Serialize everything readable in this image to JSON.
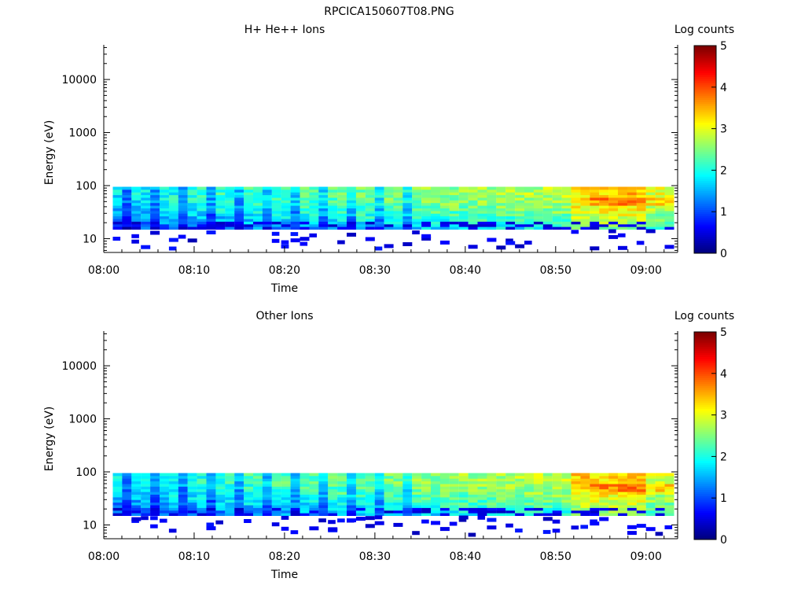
{
  "figure_title": "RPCICA150607T08.PNG",
  "colors": {
    "background": "#ffffff",
    "axis": "#000000",
    "colormap_stops": [
      "#00007f",
      "#0000ff",
      "#007fff",
      "#00ffff",
      "#7fff7f",
      "#ffff00",
      "#ff7f00",
      "#ff0000",
      "#7f0000"
    ]
  },
  "chart_data": [
    {
      "type": "heatmap",
      "title": "H+ He++ Ions",
      "xlabel": "Time",
      "ylabel": "Energy (eV)",
      "x_ticks": [
        "08:00",
        "08:10",
        "08:20",
        "08:30",
        "08:40",
        "08:50",
        "09:00"
      ],
      "x_range_minutes": [
        0,
        63.5
      ],
      "y_scale": "log",
      "y_range": [
        5.5,
        45000
      ],
      "y_ticks": [
        "10",
        "100",
        "1000",
        "10000"
      ],
      "colorbar": {
        "label": "Log counts",
        "range": [
          0,
          5
        ],
        "ticks": [
          "0",
          "1",
          "2",
          "3",
          "4",
          "5"
        ]
      },
      "energy_band_eV": [
        15,
        95
      ],
      "description_values": {
        "typical_log_counts_early": 1.8,
        "typical_log_counts_late": 3.0,
        "peak_log_counts": 3.8,
        "peak_times": [
          "08:52",
          "08:56"
        ]
      }
    },
    {
      "type": "heatmap",
      "title": "Other Ions",
      "xlabel": "Time",
      "ylabel": "Energy (eV)",
      "x_ticks": [
        "08:00",
        "08:10",
        "08:20",
        "08:30",
        "08:40",
        "08:50",
        "09:00"
      ],
      "x_range_minutes": [
        0,
        63.5
      ],
      "y_scale": "log",
      "y_range": [
        5.5,
        45000
      ],
      "y_ticks": [
        "10",
        "100",
        "1000",
        "10000"
      ],
      "colorbar": {
        "label": "Log counts",
        "range": [
          0,
          5
        ],
        "ticks": [
          "0",
          "1",
          "2",
          "3",
          "4",
          "5"
        ]
      },
      "energy_band_eV": [
        15,
        95
      ],
      "description_values": {
        "typical_log_counts_early": 1.8,
        "typical_log_counts_late": 3.0,
        "peak_log_counts": 3.8,
        "peak_times": [
          "08:52",
          "08:56"
        ]
      }
    }
  ]
}
